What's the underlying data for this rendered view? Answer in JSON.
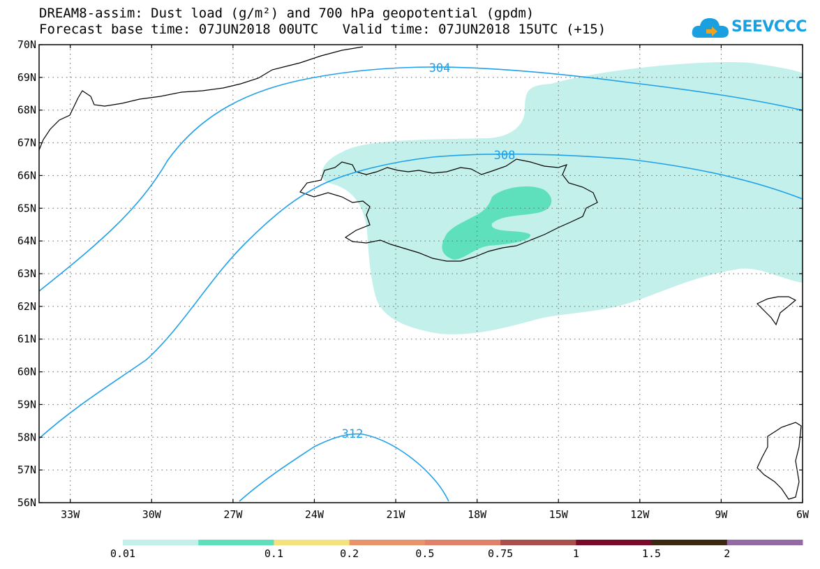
{
  "title": {
    "line1": "DREAM8-assim: Dust load (g/m²) and 700 hPa geopotential (gpdm)",
    "line2": "Forecast base time: 07JUN2018 00UTC   Valid time: 07JUN2018 15UTC (+15)"
  },
  "logo": {
    "text": "SEEVCCC",
    "icon": "cloud-icon",
    "color": "#1aa0e0"
  },
  "map": {
    "lat_labels": [
      "70N",
      "69N",
      "68N",
      "67N",
      "66N",
      "65N",
      "64N",
      "63N",
      "62N",
      "61N",
      "60N",
      "59N",
      "58N",
      "57N",
      "56N"
    ],
    "lon_labels": [
      "33W",
      "30W",
      "27W",
      "24W",
      "21W",
      "18W",
      "15W",
      "12W",
      "9W",
      "6W"
    ],
    "contours": [
      {
        "label": "304",
        "units": "gpdm"
      },
      {
        "label": "308",
        "units": "gpdm"
      },
      {
        "label": "312",
        "units": "gpdm"
      }
    ],
    "contour_color": "#1ea0ea",
    "grid": "dotted"
  },
  "colorbar": {
    "colors": [
      "#c3f0ea",
      "#5fe0bc",
      "#f5e27a",
      "#e9936a",
      "#e0826a",
      "#a9504a",
      "#7a0a2a",
      "#3a2810",
      "#946aa4"
    ],
    "labels": [
      "0.01",
      "0.1",
      "0.2",
      "0.5",
      "0.75",
      "1",
      "1.5",
      "2"
    ]
  }
}
